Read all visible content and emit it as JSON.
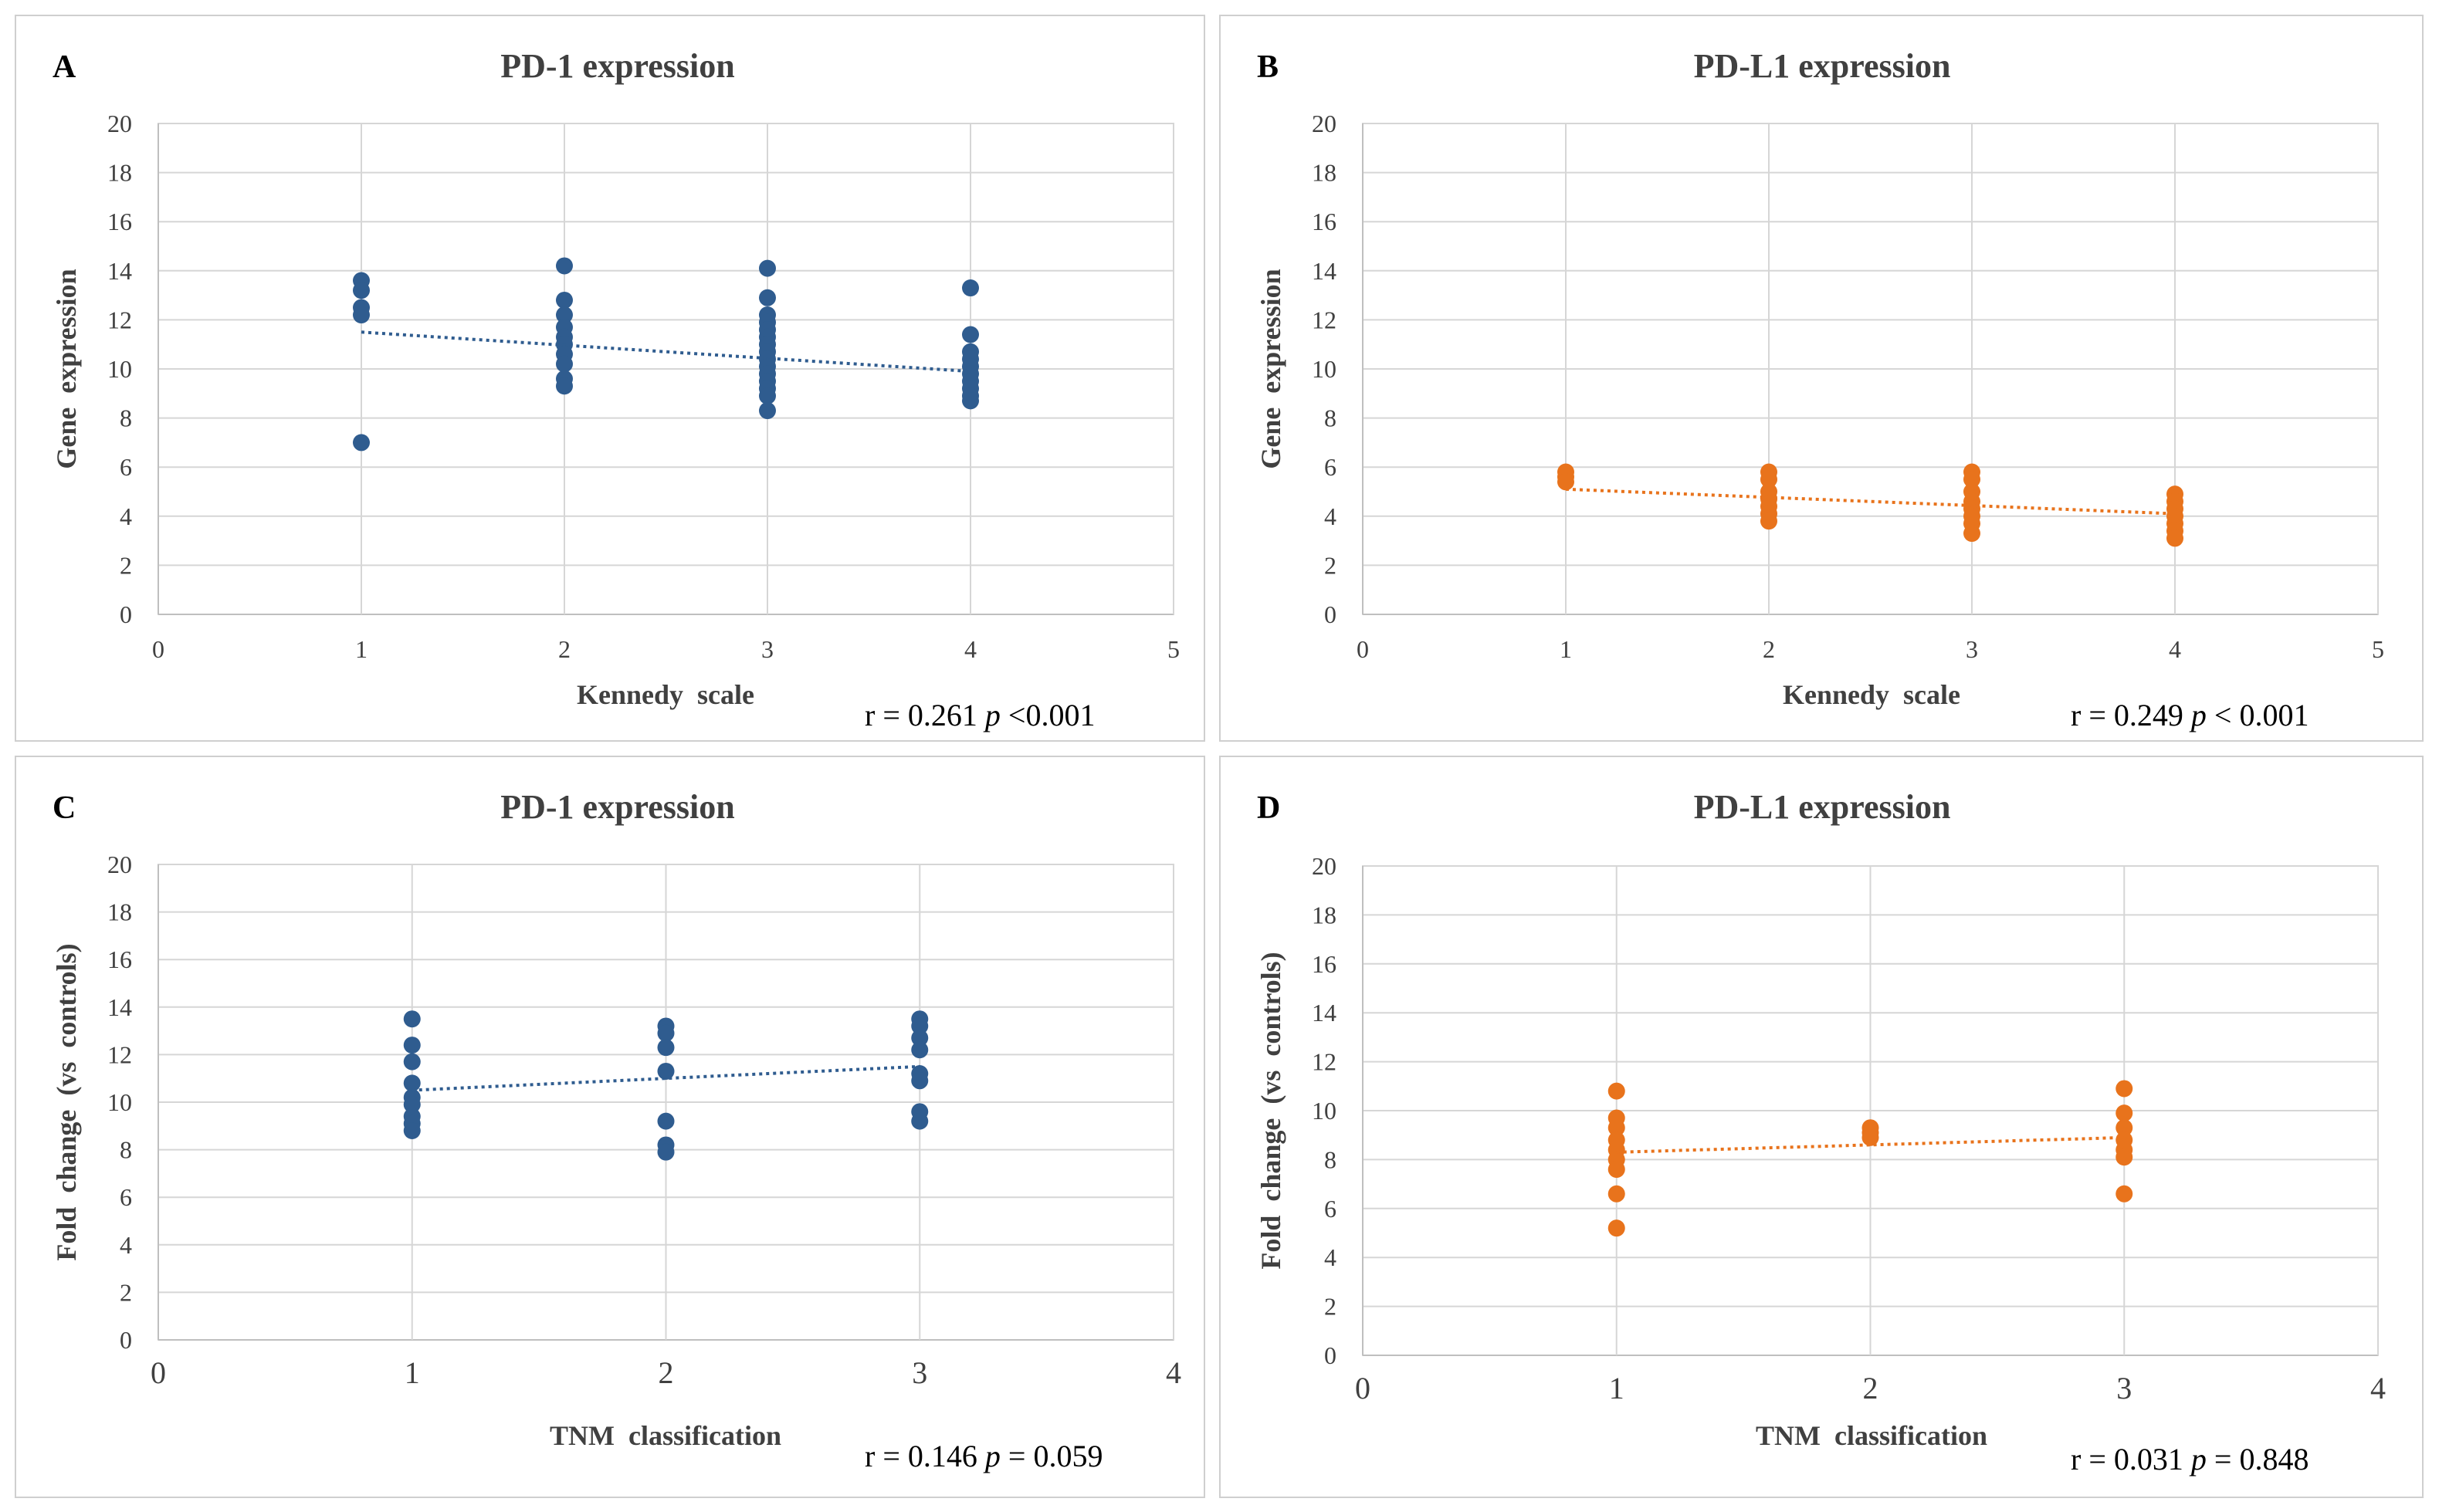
{
  "figure": {
    "colors": {
      "blue": "#2f5c8f",
      "orange": "#e8731c",
      "grid": "#d6d6d6",
      "axis": "#bfbfbf",
      "panel_border": "#cfcfcf",
      "text": "#404040"
    }
  },
  "chart_data": [
    {
      "type": "scatter",
      "panel_letter": "A",
      "title": "PD-1 expression",
      "xlabel": "Kennedy  scale",
      "ylabel": "Gene  expression",
      "xlim": [
        0,
        5
      ],
      "ylim": [
        0,
        20
      ],
      "xticks": [
        0,
        1,
        2,
        3,
        4,
        5
      ],
      "yticks": [
        0,
        2,
        4,
        6,
        8,
        10,
        12,
        14,
        16,
        18,
        20
      ],
      "color": "blue",
      "stat": {
        "r": "r = 0.261 ",
        "p_symbol": "p",
        "p": " <0.001"
      },
      "trendline": {
        "x": [
          1,
          4
        ],
        "y": [
          11.5,
          9.9
        ]
      },
      "points": [
        {
          "x": 1,
          "y": 13.6
        },
        {
          "x": 1,
          "y": 13.2
        },
        {
          "x": 1,
          "y": 12.5
        },
        {
          "x": 1,
          "y": 12.2
        },
        {
          "x": 1,
          "y": 7.0
        },
        {
          "x": 2,
          "y": 14.2
        },
        {
          "x": 2,
          "y": 12.8
        },
        {
          "x": 2,
          "y": 12.2
        },
        {
          "x": 2,
          "y": 11.7
        },
        {
          "x": 2,
          "y": 11.3
        },
        {
          "x": 2,
          "y": 11.0
        },
        {
          "x": 2,
          "y": 10.6
        },
        {
          "x": 2,
          "y": 10.2
        },
        {
          "x": 2,
          "y": 9.6
        },
        {
          "x": 2,
          "y": 9.3
        },
        {
          "x": 3,
          "y": 14.1
        },
        {
          "x": 3,
          "y": 12.9
        },
        {
          "x": 3,
          "y": 12.2
        },
        {
          "x": 3,
          "y": 11.9
        },
        {
          "x": 3,
          "y": 11.6
        },
        {
          "x": 3,
          "y": 11.3
        },
        {
          "x": 3,
          "y": 11.0
        },
        {
          "x": 3,
          "y": 10.7
        },
        {
          "x": 3,
          "y": 10.4
        },
        {
          "x": 3,
          "y": 10.1
        },
        {
          "x": 3,
          "y": 9.8
        },
        {
          "x": 3,
          "y": 9.5
        },
        {
          "x": 3,
          "y": 9.2
        },
        {
          "x": 3,
          "y": 8.9
        },
        {
          "x": 3,
          "y": 8.3
        },
        {
          "x": 4,
          "y": 13.3
        },
        {
          "x": 4,
          "y": 11.4
        },
        {
          "x": 4,
          "y": 10.7
        },
        {
          "x": 4,
          "y": 10.4
        },
        {
          "x": 4,
          "y": 10.1
        },
        {
          "x": 4,
          "y": 9.8
        },
        {
          "x": 4,
          "y": 9.5
        },
        {
          "x": 4,
          "y": 9.2
        },
        {
          "x": 4,
          "y": 8.9
        },
        {
          "x": 4,
          "y": 8.7
        }
      ]
    },
    {
      "type": "scatter",
      "panel_letter": "B",
      "title": "PD-L1 expression",
      "xlabel": "Kennedy  scale",
      "ylabel": "Gene  expression",
      "xlim": [
        0,
        5
      ],
      "ylim": [
        0,
        20
      ],
      "xticks": [
        0,
        1,
        2,
        3,
        4,
        5
      ],
      "yticks": [
        0,
        2,
        4,
        6,
        8,
        10,
        12,
        14,
        16,
        18,
        20
      ],
      "color": "orange",
      "stat": {
        "r": "r = 0.249 ",
        "p_symbol": "p",
        "p": " < 0.001"
      },
      "trendline": {
        "x": [
          1,
          4
        ],
        "y": [
          5.1,
          4.1
        ]
      },
      "points": [
        {
          "x": 1,
          "y": 5.8
        },
        {
          "x": 1,
          "y": 5.6
        },
        {
          "x": 1,
          "y": 5.4
        },
        {
          "x": 2,
          "y": 5.8
        },
        {
          "x": 2,
          "y": 5.5
        },
        {
          "x": 2,
          "y": 5.0
        },
        {
          "x": 2,
          "y": 4.7
        },
        {
          "x": 2,
          "y": 4.4
        },
        {
          "x": 2,
          "y": 4.1
        },
        {
          "x": 2,
          "y": 3.8
        },
        {
          "x": 3,
          "y": 5.8
        },
        {
          "x": 3,
          "y": 5.5
        },
        {
          "x": 3,
          "y": 5.0
        },
        {
          "x": 3,
          "y": 4.6
        },
        {
          "x": 3,
          "y": 4.3
        },
        {
          "x": 3,
          "y": 4.0
        },
        {
          "x": 3,
          "y": 3.7
        },
        {
          "x": 3,
          "y": 3.3
        },
        {
          "x": 4,
          "y": 4.9
        },
        {
          "x": 4,
          "y": 4.6
        },
        {
          "x": 4,
          "y": 4.3
        },
        {
          "x": 4,
          "y": 4.0
        },
        {
          "x": 4,
          "y": 3.7
        },
        {
          "x": 4,
          "y": 3.4
        },
        {
          "x": 4,
          "y": 3.1
        }
      ]
    },
    {
      "type": "scatter",
      "panel_letter": "C",
      "title": "PD-1 expression",
      "xlabel": "TNM  classification",
      "ylabel": "Fold  change  (vs  controls)",
      "xlim": [
        0,
        4
      ],
      "ylim": [
        0,
        20
      ],
      "xticks": [
        0,
        1,
        2,
        3,
        4
      ],
      "yticks": [
        0,
        2,
        4,
        6,
        8,
        10,
        12,
        14,
        16,
        18,
        20
      ],
      "color": "blue",
      "stat": {
        "r": "r = 0.146 ",
        "p_symbol": "p",
        "p": " = 0.059"
      },
      "trendline": {
        "x": [
          1,
          3
        ],
        "y": [
          10.5,
          11.5
        ]
      },
      "points": [
        {
          "x": 1,
          "y": 13.5
        },
        {
          "x": 1,
          "y": 12.4
        },
        {
          "x": 1,
          "y": 11.7
        },
        {
          "x": 1,
          "y": 10.8
        },
        {
          "x": 1,
          "y": 10.2
        },
        {
          "x": 1,
          "y": 9.9
        },
        {
          "x": 1,
          "y": 9.4
        },
        {
          "x": 1,
          "y": 9.1
        },
        {
          "x": 1,
          "y": 8.8
        },
        {
          "x": 2,
          "y": 13.2
        },
        {
          "x": 2,
          "y": 12.9
        },
        {
          "x": 2,
          "y": 12.3
        },
        {
          "x": 2,
          "y": 11.3
        },
        {
          "x": 2,
          "y": 9.2
        },
        {
          "x": 2,
          "y": 8.2
        },
        {
          "x": 2,
          "y": 7.9
        },
        {
          "x": 3,
          "y": 13.5
        },
        {
          "x": 3,
          "y": 13.2
        },
        {
          "x": 3,
          "y": 12.7
        },
        {
          "x": 3,
          "y": 12.2
        },
        {
          "x": 3,
          "y": 11.2
        },
        {
          "x": 3,
          "y": 10.9
        },
        {
          "x": 3,
          "y": 9.6
        },
        {
          "x": 3,
          "y": 9.2
        }
      ]
    },
    {
      "type": "scatter",
      "panel_letter": "D",
      "title": "PD-L1 expression",
      "xlabel": "TNM  classification",
      "ylabel": "Fold  change  (vs  controls)",
      "xlim": [
        0,
        4
      ],
      "ylim": [
        0,
        20
      ],
      "xticks": [
        0,
        1,
        2,
        3,
        4
      ],
      "yticks": [
        0,
        2,
        4,
        6,
        8,
        10,
        12,
        14,
        16,
        18,
        20
      ],
      "color": "orange",
      "stat": {
        "r": "r = 0.031 ",
        "p_symbol": "p",
        "p": " = 0.848"
      },
      "trendline": {
        "x": [
          1,
          3
        ],
        "y": [
          8.3,
          8.9
        ]
      },
      "points": [
        {
          "x": 1,
          "y": 10.8
        },
        {
          "x": 1,
          "y": 9.7
        },
        {
          "x": 1,
          "y": 9.3
        },
        {
          "x": 1,
          "y": 8.8
        },
        {
          "x": 1,
          "y": 8.4
        },
        {
          "x": 1,
          "y": 8.0
        },
        {
          "x": 1,
          "y": 7.6
        },
        {
          "x": 1,
          "y": 6.6
        },
        {
          "x": 1,
          "y": 5.2
        },
        {
          "x": 2,
          "y": 9.3
        },
        {
          "x": 2,
          "y": 9.1
        },
        {
          "x": 2,
          "y": 8.9
        },
        {
          "x": 3,
          "y": 10.9
        },
        {
          "x": 3,
          "y": 9.9
        },
        {
          "x": 3,
          "y": 9.3
        },
        {
          "x": 3,
          "y": 8.8
        },
        {
          "x": 3,
          "y": 8.4
        },
        {
          "x": 3,
          "y": 8.1
        },
        {
          "x": 3,
          "y": 6.6
        }
      ]
    }
  ]
}
